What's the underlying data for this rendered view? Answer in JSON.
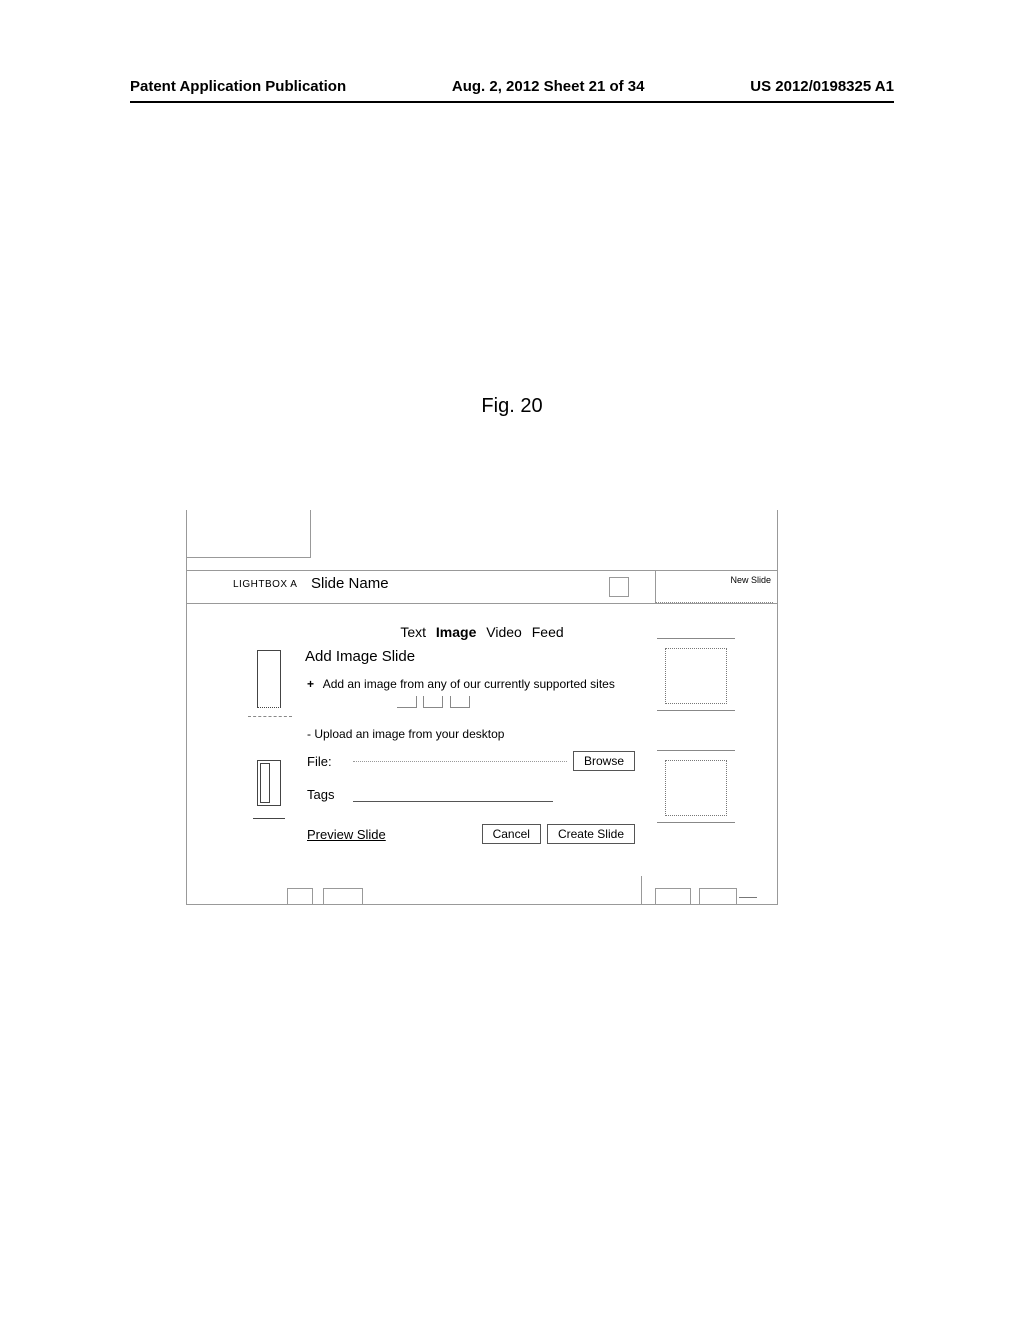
{
  "header": {
    "left": "Patent Application Publication",
    "center": "Aug. 2, 2012  Sheet 21 of 34",
    "right": "US 2012/0198325 A1"
  },
  "figure_caption": "Fig. 20",
  "ui": {
    "lightbox_label": "LIGHTBOX A",
    "slide_name_label": "Slide Name",
    "new_slide_label": "New Slide",
    "tabs": {
      "text": "Text",
      "image": "Image",
      "video": "Video",
      "feed": "Feed"
    },
    "panel_title": "Add Image Slide",
    "add_image_line": "Add an image from any of our currently supported sites",
    "upload_line": "Upload an image from your desktop",
    "file_label": "File:",
    "browse_label": "Browse",
    "tags_label": "Tags",
    "preview_link": "Preview Slide",
    "cancel_label": "Cancel",
    "create_label": "Create Slide"
  }
}
